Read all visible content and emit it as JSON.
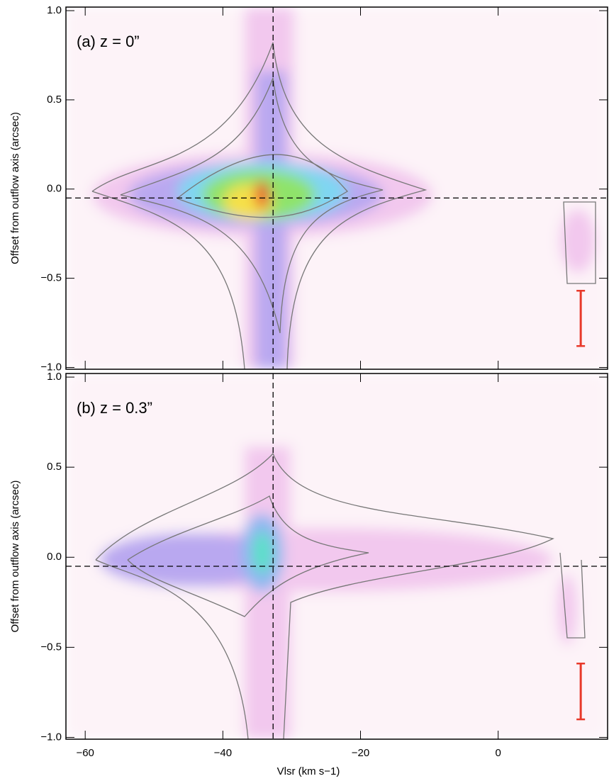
{
  "chart_data": [
    {
      "type": "contour",
      "annotation": "(a) z = 0”",
      "ylabel": "Offset from outflow axis (arcsec)",
      "xlim": [
        -62.8,
        15.9
      ],
      "ylim": [
        -1.01,
        1.02
      ],
      "xticks": [
        -60,
        -40,
        -20,
        0
      ],
      "yticks": [
        {
          "value": -1.0,
          "label": "−1.0"
        },
        {
          "value": -0.5,
          "label": "−0.5"
        },
        {
          "value": 0,
          "label": "0.0"
        },
        0.5,
        {
          "value": 1.0,
          "label": "1.0"
        }
      ],
      "vline": -32.7,
      "hline": -0.05,
      "errorbar": {
        "x": 12,
        "low": -0.88,
        "high": -0.57,
        "color": "#e8392a"
      }
    },
    {
      "type": "contour",
      "annotation": "(b) z = 0.3”",
      "ylabel": "Offset from outflow axis (arcsec)",
      "xlabel": "Vlsr (km s−1)",
      "xlim": [
        -62.8,
        15.9
      ],
      "ylim": [
        -1.01,
        1.02
      ],
      "xticks": [
        {
          "value": -60,
          "label": "−60"
        },
        {
          "value": -40,
          "label": "−40"
        },
        {
          "value": -20,
          "label": "−20"
        },
        0
      ],
      "yticks": [
        {
          "value": -1.0,
          "label": "−1.0"
        },
        {
          "value": -0.5,
          "label": "−0.5"
        },
        {
          "value": 0,
          "label": "0.0"
        },
        0.5,
        {
          "value": 1.0,
          "label": "1.0"
        }
      ],
      "vline": -32.7,
      "hline": -0.05,
      "errorbar": {
        "x": 12,
        "low": -0.9,
        "high": -0.59,
        "color": "#e8392a"
      }
    }
  ]
}
